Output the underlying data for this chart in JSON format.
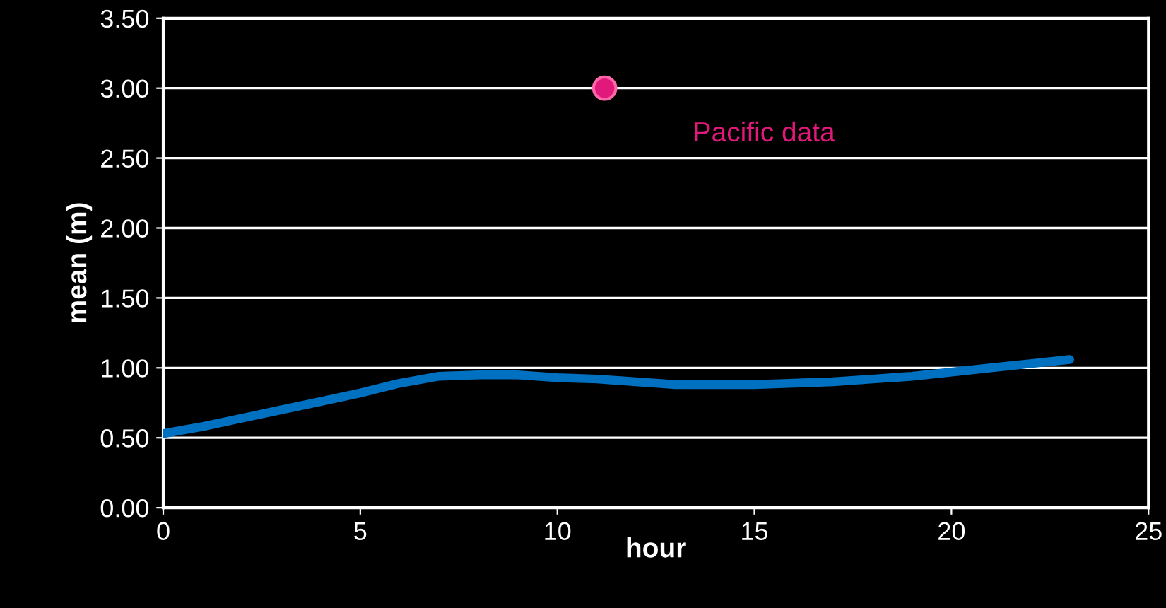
{
  "chart_data": {
    "type": "line",
    "xlabel": "hour",
    "ylabel": "mean (m)",
    "xlim": [
      0,
      25
    ],
    "xticks": [
      0,
      5,
      10,
      15,
      20,
      25
    ],
    "ylim": [
      0,
      3.5
    ],
    "yticks": [
      {
        "value": 0,
        "label": "0.00"
      },
      {
        "value": 0.5,
        "label": "0.50"
      },
      {
        "value": 1,
        "label": "1.00"
      },
      {
        "value": 1.5,
        "label": "1.50"
      },
      {
        "value": 2,
        "label": "2.00"
      },
      {
        "value": 2.5,
        "label": "2.50"
      },
      {
        "value": 3,
        "label": "3.00"
      },
      {
        "value": 3.5,
        "label": "3.50"
      }
    ],
    "grid": "y",
    "legend": false,
    "series": [
      {
        "color": "#0070c0",
        "x": [
          0,
          1,
          2,
          3,
          4,
          5,
          6,
          7,
          8,
          9,
          10,
          11,
          12,
          13,
          14,
          15,
          16,
          17,
          18,
          19,
          20,
          21,
          22,
          23
        ],
        "values": [
          0.53,
          0.58,
          0.64,
          0.7,
          0.76,
          0.82,
          0.89,
          0.94,
          0.95,
          0.95,
          0.93,
          0.92,
          0.9,
          0.88,
          0.88,
          0.88,
          0.89,
          0.9,
          0.92,
          0.94,
          0.97,
          1.0,
          1.03,
          1.06
        ]
      },
      {
        "type": "scatter",
        "name": "Pacific data",
        "color": "#e0197a",
        "marker": "circle",
        "x": [
          11.2
        ],
        "values": [
          3.0
        ]
      }
    ]
  }
}
